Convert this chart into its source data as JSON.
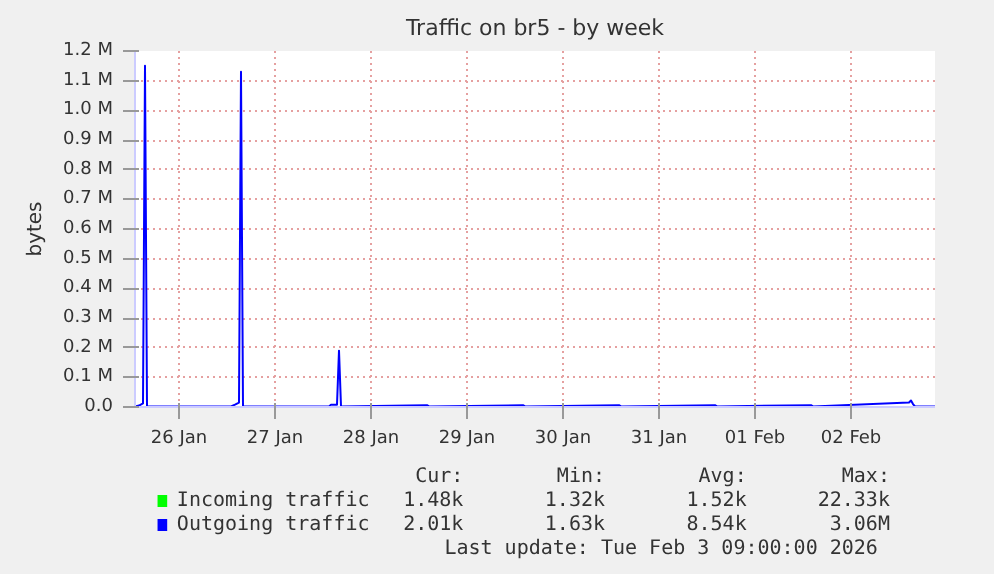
{
  "chart_data": {
    "type": "line",
    "title": "Traffic on br5 - by week",
    "ylabel": "bytes",
    "xlim": [
      "2026-01-26T01:00",
      "2026-02-03T09:00"
    ],
    "xticks": [
      {
        "value": "2026-01-26T12:00",
        "label": "26 Jan"
      },
      {
        "value": "2026-01-27T12:00",
        "label": "27 Jan"
      },
      {
        "value": "2026-01-28T12:00",
        "label": "28 Jan"
      },
      {
        "value": "2026-01-29T12:00",
        "label": "29 Jan"
      },
      {
        "value": "2026-01-30T12:00",
        "label": "30 Jan"
      },
      {
        "value": "2026-01-31T12:00",
        "label": "31 Jan"
      },
      {
        "value": "2026-02-01T12:00",
        "label": "01 Feb"
      },
      {
        "value": "2026-02-02T12:00",
        "label": "02 Feb"
      }
    ],
    "ylim": [
      0,
      1200000
    ],
    "yticks": [
      {
        "value": 0,
        "label": "0.0"
      },
      {
        "value": 100000,
        "label": "0.1 M"
      },
      {
        "value": 200000,
        "label": "0.2 M"
      },
      {
        "value": 300000,
        "label": "0.3 M"
      },
      {
        "value": 400000,
        "label": "0.4 M"
      },
      {
        "value": 500000,
        "label": "0.5 M"
      },
      {
        "value": 600000,
        "label": "0.6 M"
      },
      {
        "value": 700000,
        "label": "0.7 M"
      },
      {
        "value": 800000,
        "label": "0.8 M"
      },
      {
        "value": 900000,
        "label": "0.9 M"
      },
      {
        "value": 1000000,
        "label": "1.0 M"
      },
      {
        "value": 1100000,
        "label": "1.1 M"
      },
      {
        "value": 1200000,
        "label": "1.2 M"
      }
    ],
    "grid": true,
    "legend": "bottom",
    "x": [
      "2026-01-26T01:00",
      "2026-01-26T02:00",
      "2026-01-26T03:00",
      "2026-01-26T03:30",
      "2026-01-26T04:00",
      "2026-01-27T01:00",
      "2026-01-27T02:00",
      "2026-01-27T03:00",
      "2026-01-27T03:30",
      "2026-01-27T04:00",
      "2026-01-28T01:30",
      "2026-01-28T02:00",
      "2026-01-28T03:30",
      "2026-01-28T04:00",
      "2026-01-28T04:30",
      "2026-01-29T02:00",
      "2026-01-29T02:30",
      "2026-01-30T02:00",
      "2026-01-30T02:30",
      "2026-01-31T02:00",
      "2026-01-31T02:30",
      "2026-02-01T02:00",
      "2026-02-01T02:30",
      "2026-02-02T02:00",
      "2026-02-02T02:30",
      "2026-02-03T02:30",
      "2026-02-03T03:00",
      "2026-02-03T03:30",
      "2026-02-03T04:00",
      "2026-02-03T09:00"
    ],
    "series": [
      {
        "name": "Incoming traffic",
        "color": "#00ff00",
        "values": [
          null,
          null,
          null,
          null,
          null,
          null,
          null,
          null,
          null,
          null,
          null,
          null,
          null,
          null,
          null,
          null,
          null,
          null,
          null,
          null,
          null,
          null,
          null,
          null,
          null,
          null,
          null,
          null,
          null,
          null
        ]
      },
      {
        "name": "Outgoing traffic",
        "color": "#0000ff",
        "values": [
          2000,
          5000,
          12000,
          1150000,
          2000,
          2000,
          8000,
          15000,
          1130000,
          2000,
          2000,
          8000,
          8000,
          190000,
          2000,
          6000,
          2000,
          6000,
          2000,
          6000,
          2000,
          6000,
          2000,
          6000,
          2000,
          15000,
          22000,
          10000,
          2000,
          2000
        ]
      }
    ],
    "annotations": [
      "Cur:",
      "Min:",
      "Avg:",
      "Max:",
      "1.48k",
      "1.32k",
      "1.52k",
      "22.33k",
      "2.01k",
      "1.63k",
      "8.54k",
      "3.06M",
      "Last update: Tue Feb  3 09:00:00 2026"
    ]
  }
}
